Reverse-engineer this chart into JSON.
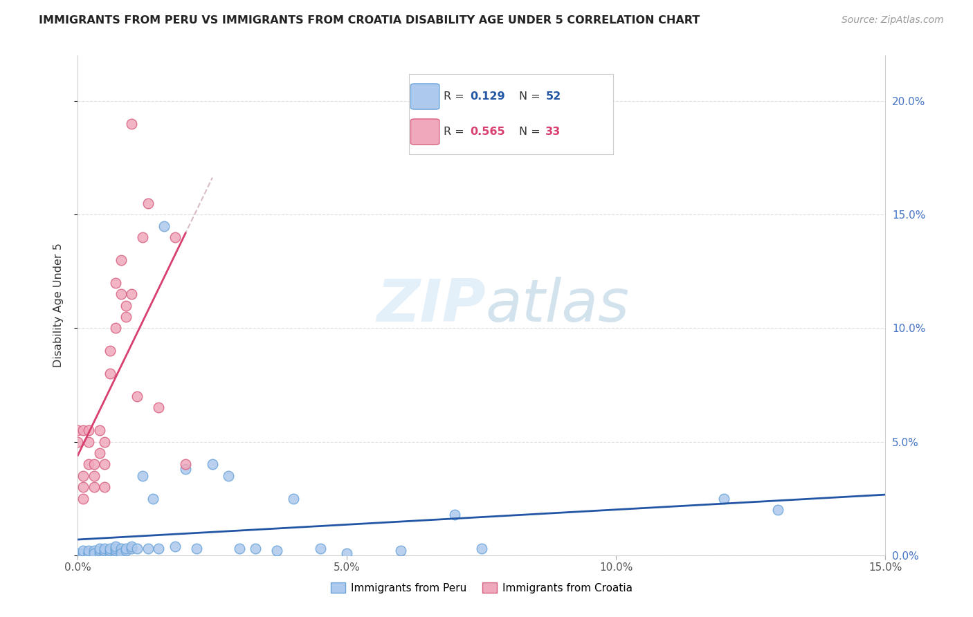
{
  "title": "IMMIGRANTS FROM PERU VS IMMIGRANTS FROM CROATIA DISABILITY AGE UNDER 5 CORRELATION CHART",
  "source": "Source: ZipAtlas.com",
  "ylabel": "Disability Age Under 5",
  "watermark_zip": "ZIP",
  "watermark_atlas": "atlas",
  "xlim": [
    0.0,
    0.15
  ],
  "ylim": [
    0.0,
    0.22
  ],
  "xticks": [
    0.0,
    0.05,
    0.1,
    0.15
  ],
  "yticks": [
    0.0,
    0.05,
    0.1,
    0.15,
    0.2
  ],
  "peru_color": "#adc9ed",
  "peru_edge_color": "#6aa3d8",
  "croatia_color": "#f0a8bc",
  "croatia_edge_color": "#d96080",
  "peru_R": 0.129,
  "peru_N": 52,
  "croatia_R": 0.565,
  "croatia_N": 33,
  "trend_blue_color": "#2255a4",
  "trend_pink_color": "#d94070",
  "trend_gray_color": "#c8a0b0",
  "peru_x": [
    0.0,
    0.001,
    0.001,
    0.002,
    0.002,
    0.002,
    0.003,
    0.003,
    0.003,
    0.004,
    0.004,
    0.004,
    0.005,
    0.005,
    0.005,
    0.005,
    0.006,
    0.006,
    0.006,
    0.007,
    0.007,
    0.007,
    0.007,
    0.008,
    0.008,
    0.008,
    0.009,
    0.009,
    0.01,
    0.01,
    0.011,
    0.012,
    0.013,
    0.014,
    0.015,
    0.016,
    0.018,
    0.02,
    0.022,
    0.025,
    0.028,
    0.03,
    0.033,
    0.037,
    0.04,
    0.045,
    0.05,
    0.06,
    0.07,
    0.075,
    0.12,
    0.13
  ],
  "peru_y": [
    0.001,
    0.001,
    0.002,
    0.001,
    0.001,
    0.002,
    0.001,
    0.002,
    0.001,
    0.001,
    0.002,
    0.003,
    0.001,
    0.001,
    0.002,
    0.003,
    0.001,
    0.002,
    0.003,
    0.001,
    0.002,
    0.003,
    0.004,
    0.002,
    0.003,
    0.001,
    0.002,
    0.003,
    0.003,
    0.004,
    0.003,
    0.035,
    0.003,
    0.025,
    0.003,
    0.145,
    0.004,
    0.038,
    0.003,
    0.04,
    0.035,
    0.003,
    0.003,
    0.002,
    0.025,
    0.003,
    0.001,
    0.002,
    0.018,
    0.003,
    0.025,
    0.02
  ],
  "croatia_x": [
    0.0,
    0.0,
    0.001,
    0.001,
    0.001,
    0.001,
    0.002,
    0.002,
    0.002,
    0.003,
    0.003,
    0.003,
    0.004,
    0.004,
    0.005,
    0.005,
    0.005,
    0.006,
    0.006,
    0.007,
    0.007,
    0.008,
    0.008,
    0.009,
    0.009,
    0.01,
    0.01,
    0.011,
    0.012,
    0.013,
    0.015,
    0.018,
    0.02
  ],
  "croatia_y": [
    0.055,
    0.05,
    0.035,
    0.03,
    0.055,
    0.025,
    0.05,
    0.04,
    0.055,
    0.04,
    0.035,
    0.03,
    0.055,
    0.045,
    0.05,
    0.04,
    0.03,
    0.09,
    0.08,
    0.12,
    0.1,
    0.13,
    0.115,
    0.105,
    0.11,
    0.115,
    0.19,
    0.07,
    0.14,
    0.155,
    0.065,
    0.14,
    0.04
  ],
  "legend_blue_R_text": "R = ",
  "legend_blue_R_val": "0.129",
  "legend_blue_N_text": "N = ",
  "legend_blue_N_val": "52",
  "legend_pink_R_text": "R = ",
  "legend_pink_R_val": "0.565",
  "legend_pink_N_text": "N = ",
  "legend_pink_N_val": "33",
  "legend_val_color_blue": "#2255a4",
  "legend_val_color_pink": "#d94070",
  "bottom_legend_peru": "Immigrants from Peru",
  "bottom_legend_croatia": "Immigrants from Croatia"
}
